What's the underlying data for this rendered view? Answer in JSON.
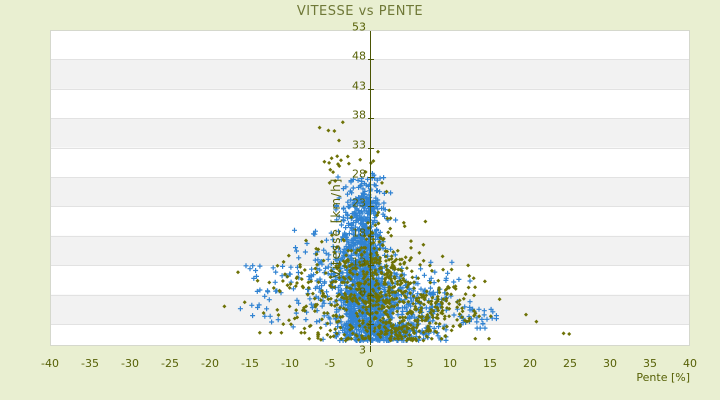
{
  "title": {
    "text": "VITESSE vs PENTE"
  },
  "axes": {
    "x_title": "Pente [%]",
    "y_title": "Vitesse [km/h]"
  },
  "colors": {
    "page_bg": "#e9efd1",
    "plot_bg": "#ffffff",
    "band": "#f2f2f2",
    "grid": "#e2e2e2",
    "plot_border": "#d5d8cd",
    "axis_line": "#4b5504",
    "tick_text": "#566005",
    "title_text": "#6f7837",
    "series_blue": "#3183d2",
    "series_olive": "#6e7206"
  },
  "chart_data": {
    "type": "scatter",
    "title": "VITESSE vs PENTE",
    "xlabel": "Pente [%]",
    "ylabel": "Vitesse [km/h]",
    "xlim": [
      -40,
      40
    ],
    "ylim": [
      -2,
      53
    ],
    "x_ticks": [
      -40,
      -35,
      -30,
      -25,
      -20,
      -15,
      -10,
      -5,
      0,
      5,
      10,
      15,
      20,
      25,
      30,
      35,
      40
    ],
    "y_ticks": [
      3,
      8,
      13,
      18,
      23,
      28,
      33,
      38,
      43,
      48,
      53
    ],
    "grid": "horizontal-bands",
    "zero_axis_line_x": 0,
    "legend": "none",
    "seed": 13,
    "series": [
      {
        "name": "vitesse-points-blue",
        "marker": "cross",
        "color_key": "series_blue",
        "clusters": [
          {
            "n": 620,
            "mx": -0.8,
            "sx": 1.9,
            "mv": 6.5,
            "sv": 3.2,
            "clip": [
              -7,
              5,
              0.4,
              14
            ]
          },
          {
            "n": 430,
            "mx": -0.9,
            "sx": 1.7,
            "mv": 14.5,
            "sv": 3.8,
            "clip": [
              -6,
              4.5,
              7,
              23
            ]
          },
          {
            "n": 170,
            "mx": -0.6,
            "sx": 1.3,
            "mv": 22.5,
            "sv": 2.6,
            "clip": [
              -4.5,
              3,
              17,
              27.8
            ]
          },
          {
            "n": 260,
            "mx": 2.2,
            "sx": 3.2,
            "mv": 1.7,
            "sv": 1.0,
            "clip": [
              -5.5,
              9.5,
              0.2,
              3.6
            ]
          },
          {
            "n": 160,
            "mx": 5.8,
            "sx": 2.6,
            "mv": 7.0,
            "sv": 2.6,
            "clip": [
              1.5,
              12.5,
              1.5,
              13.5
            ]
          },
          {
            "n": 90,
            "mx": -6.5,
            "sx": 2.6,
            "mv": 11.0,
            "sv": 4.2,
            "clip": [
              -13,
              -2,
              2.5,
              21
            ]
          },
          {
            "n": 26,
            "mx": -12.5,
            "sx": 2.2,
            "mv": 8.0,
            "sv": 3.6,
            "clip": [
              -17.5,
              -8,
              3,
              16
            ]
          },
          {
            "n": 32,
            "mx": 13.0,
            "sx": 1.4,
            "mv": 4.6,
            "sv": 1.3,
            "clip": [
              10.5,
              15.8,
              2.3,
              7.5
            ]
          },
          {
            "n": 16,
            "mx": -1.0,
            "sx": 1.8,
            "mv": 26.3,
            "sv": 1.2,
            "clip": [
              -4,
              2,
              24.5,
              28.6
            ]
          }
        ],
        "outliers": [
          [
            -15.5,
            12.9
          ],
          [
            -15.0,
            12.4
          ],
          [
            -14.3,
            12.1
          ],
          [
            -16.2,
            5.6
          ]
        ]
      },
      {
        "name": "vitesse-points-olive",
        "marker": "diamond",
        "color_key": "series_olive",
        "clusters": [
          {
            "n": 270,
            "mx": 0.8,
            "sx": 2.6,
            "mv": 10.0,
            "sv": 5.0,
            "clip": [
              -6,
              7,
              0.5,
              26
            ]
          },
          {
            "n": 200,
            "mx": 0.5,
            "sx": 5.5,
            "mv": 8.0,
            "sv": 4.2,
            "clip": [
              -15,
              13,
              0.5,
              21
            ]
          },
          {
            "n": 130,
            "mx": 8.0,
            "sx": 3.6,
            "mv": 6.0,
            "sv": 3.0,
            "clip": [
              2,
              19,
              0.5,
              14.5
            ]
          },
          {
            "n": 75,
            "mx": -8.0,
            "sx": 4.0,
            "mv": 9.0,
            "sv": 4.5,
            "clip": [
              -21,
              -2.5,
              1.5,
              21
            ]
          },
          {
            "n": 100,
            "mx": 3.0,
            "sx": 4.2,
            "mv": 1.6,
            "sv": 1.0,
            "clip": [
              -6.5,
              13,
              0.2,
              3.6
            ]
          },
          {
            "n": 18,
            "mx": -3.0,
            "sx": 2.2,
            "mv": 30.0,
            "sv": 2.6,
            "clip": [
              -8.5,
              1.5,
              27,
              37.6
            ]
          }
        ],
        "outliers": [
          [
            -3.4,
            37.3
          ],
          [
            -6.3,
            36.4
          ],
          [
            -5.2,
            35.9
          ],
          [
            -5.7,
            30.6
          ],
          [
            -4.8,
            31.2
          ],
          [
            1.0,
            32.3
          ],
          [
            24.2,
            1.4
          ],
          [
            24.9,
            1.3
          ],
          [
            16.2,
            7.2
          ],
          [
            19.5,
            4.6
          ],
          [
            20.8,
            3.4
          ],
          [
            -16.5,
            11.8
          ],
          [
            -18.2,
            6.0
          ]
        ]
      }
    ]
  }
}
